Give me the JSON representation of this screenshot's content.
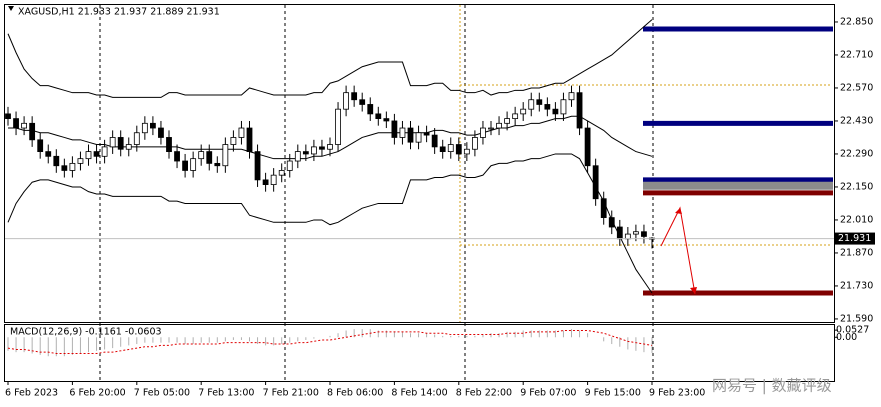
{
  "chart_data": [
    {
      "type": "candlestick",
      "title": "XAGUSD,H1  21.933 21.937 21.889 21.931",
      "categories": [
        "6 Feb 2023",
        null,
        null,
        null,
        null,
        null,
        null,
        null,
        "6 Feb 20:00",
        null,
        null,
        null,
        null,
        null,
        null,
        null,
        "7 Feb 05:00",
        null,
        null,
        null,
        null,
        null,
        null,
        null,
        "7 Feb 13:00",
        null,
        null,
        null,
        null,
        null,
        null,
        null,
        "7 Feb 21:00",
        null,
        null,
        null,
        null,
        null,
        null,
        null,
        "8 Feb 06:00",
        null,
        null,
        null,
        null,
        null,
        null,
        null,
        "8 Feb 14:00",
        null,
        null,
        null,
        null,
        null,
        null,
        null,
        "8 Feb 22:00",
        null,
        null,
        null,
        null,
        null,
        null,
        null,
        "9 Feb 07:00",
        null,
        null,
        null,
        null,
        null,
        null,
        null,
        "9 Feb 15:00",
        null,
        null,
        null,
        null,
        null,
        null,
        null,
        "9 Feb 23:00"
      ],
      "open": [
        22.46,
        22.44,
        22.4,
        22.42,
        22.35,
        22.3,
        22.28,
        22.24,
        22.22,
        22.25,
        22.27,
        22.3,
        22.28,
        22.32,
        22.36,
        22.31,
        22.33,
        22.38,
        22.42,
        22.4,
        22.36,
        22.3,
        22.26,
        22.22,
        22.27,
        22.3,
        22.25,
        22.24,
        22.33,
        22.36,
        22.4,
        22.3,
        22.18,
        22.16,
        22.2,
        22.22,
        22.26,
        22.3,
        22.29,
        22.32,
        22.31,
        22.33,
        22.48,
        22.55,
        22.52,
        22.5,
        22.46,
        22.44,
        22.43,
        22.36,
        22.4,
        22.34,
        22.38,
        22.37,
        22.32,
        22.3,
        22.33,
        22.29,
        22.31,
        22.36,
        22.4,
        22.4,
        22.42,
        22.44,
        22.46,
        22.48,
        22.52,
        22.5,
        22.48,
        22.46,
        22.52,
        22.55,
        22.4,
        22.24,
        22.1,
        22.02,
        21.98,
        21.93,
        21.95,
        21.96,
        21.933
      ],
      "high": [
        22.49,
        22.47,
        22.45,
        22.45,
        22.38,
        22.33,
        22.31,
        22.27,
        22.28,
        22.3,
        22.33,
        22.33,
        22.35,
        22.39,
        22.39,
        22.36,
        22.41,
        22.45,
        22.45,
        22.43,
        22.39,
        22.33,
        22.29,
        22.3,
        22.33,
        22.33,
        22.28,
        22.36,
        22.39,
        22.43,
        22.43,
        22.33,
        22.21,
        22.23,
        22.25,
        22.29,
        22.33,
        22.33,
        22.35,
        22.35,
        22.36,
        22.51,
        22.58,
        22.58,
        22.55,
        22.53,
        22.49,
        22.47,
        22.46,
        22.43,
        22.43,
        22.41,
        22.41,
        22.4,
        22.35,
        22.36,
        22.36,
        22.34,
        22.39,
        22.43,
        22.43,
        22.45,
        22.47,
        22.49,
        22.51,
        22.55,
        22.55,
        22.53,
        22.51,
        22.55,
        22.58,
        22.58,
        22.43,
        22.27,
        22.13,
        22.05,
        22.01,
        21.98,
        21.99,
        21.99,
        21.937
      ],
      "low": [
        22.41,
        22.37,
        22.37,
        22.32,
        22.27,
        22.25,
        22.21,
        22.19,
        22.19,
        22.22,
        22.24,
        22.25,
        22.25,
        22.29,
        22.28,
        22.28,
        22.3,
        22.35,
        22.37,
        22.33,
        22.27,
        22.23,
        22.19,
        22.19,
        22.24,
        22.22,
        22.21,
        22.21,
        22.3,
        22.33,
        22.27,
        22.15,
        22.13,
        22.13,
        22.17,
        22.19,
        22.23,
        22.26,
        22.26,
        22.28,
        22.28,
        22.3,
        22.45,
        22.49,
        22.47,
        22.43,
        22.41,
        22.4,
        22.33,
        22.33,
        22.31,
        22.31,
        22.34,
        22.29,
        22.27,
        22.27,
        22.26,
        22.26,
        22.28,
        22.33,
        22.37,
        22.37,
        22.39,
        22.41,
        22.43,
        22.45,
        22.47,
        22.45,
        22.43,
        22.43,
        22.49,
        22.37,
        22.21,
        22.07,
        21.99,
        21.95,
        21.9,
        21.9,
        21.92,
        21.91,
        21.889
      ],
      "close": [
        22.44,
        22.4,
        22.42,
        22.35,
        22.3,
        22.28,
        22.24,
        22.22,
        22.25,
        22.27,
        22.3,
        22.28,
        22.32,
        22.36,
        22.31,
        22.33,
        22.38,
        22.42,
        22.4,
        22.36,
        22.3,
        22.26,
        22.22,
        22.27,
        22.3,
        22.25,
        22.24,
        22.33,
        22.36,
        22.4,
        22.3,
        22.18,
        22.16,
        22.2,
        22.22,
        22.26,
        22.3,
        22.29,
        22.32,
        22.31,
        22.33,
        22.48,
        22.55,
        22.52,
        22.5,
        22.46,
        22.44,
        22.43,
        22.36,
        22.4,
        22.34,
        22.38,
        22.37,
        22.32,
        22.3,
        22.33,
        22.29,
        22.31,
        22.36,
        22.4,
        22.4,
        22.42,
        22.44,
        22.46,
        22.48,
        22.52,
        22.5,
        22.48,
        22.46,
        22.52,
        22.55,
        22.4,
        22.24,
        22.1,
        22.02,
        21.98,
        21.93,
        21.95,
        21.96,
        21.94,
        21.931
      ],
      "bands": {
        "color": "#000000",
        "upper": [
          22.8,
          22.72,
          22.65,
          22.61,
          22.58,
          22.58,
          22.57,
          22.56,
          22.55,
          22.55,
          22.55,
          22.54,
          22.54,
          22.53,
          22.53,
          22.53,
          22.53,
          22.53,
          22.53,
          22.53,
          22.55,
          22.55,
          22.54,
          22.54,
          22.54,
          22.54,
          22.54,
          22.54,
          22.54,
          22.54,
          22.57,
          22.56,
          22.55,
          22.54,
          22.54,
          22.54,
          22.54,
          22.54,
          22.55,
          22.55,
          22.59,
          22.6,
          22.62,
          22.64,
          22.66,
          22.67,
          22.68,
          22.68,
          22.68,
          22.68,
          22.58,
          22.58,
          22.58,
          22.59,
          22.59,
          22.56,
          22.56,
          22.55,
          22.55,
          22.56,
          22.54,
          22.55,
          22.55,
          22.56,
          22.56,
          22.57,
          22.57,
          22.58,
          22.59,
          22.59,
          22.61,
          22.63,
          22.65,
          22.67,
          22.69,
          22.71,
          22.74,
          22.77,
          22.8,
          22.83,
          22.86
        ],
        "middle": [
          22.4,
          22.4,
          22.39,
          22.39,
          22.38,
          22.38,
          22.37,
          22.36,
          22.35,
          22.35,
          22.34,
          22.33,
          22.33,
          22.32,
          22.32,
          22.32,
          22.32,
          22.32,
          22.32,
          22.32,
          22.32,
          22.32,
          22.31,
          22.31,
          22.31,
          22.31,
          22.31,
          22.31,
          22.31,
          22.31,
          22.3,
          22.29,
          22.28,
          22.27,
          22.27,
          22.27,
          22.27,
          22.27,
          22.28,
          22.28,
          22.29,
          22.3,
          22.32,
          22.34,
          22.36,
          22.37,
          22.38,
          22.38,
          22.38,
          22.38,
          22.38,
          22.38,
          22.38,
          22.39,
          22.39,
          22.38,
          22.38,
          22.37,
          22.37,
          22.38,
          22.39,
          22.4,
          22.4,
          22.41,
          22.41,
          22.42,
          22.42,
          22.43,
          22.44,
          22.44,
          22.45,
          22.45,
          22.43,
          22.41,
          22.39,
          22.36,
          22.34,
          22.32,
          22.3,
          22.29,
          22.28
        ],
        "lower": [
          22.0,
          22.08,
          22.13,
          22.17,
          22.18,
          22.18,
          22.17,
          22.16,
          22.15,
          22.15,
          22.13,
          22.12,
          22.12,
          22.11,
          22.11,
          22.11,
          22.11,
          22.11,
          22.11,
          22.11,
          22.09,
          22.09,
          22.08,
          22.08,
          22.08,
          22.08,
          22.08,
          22.08,
          22.08,
          22.08,
          22.03,
          22.02,
          22.01,
          22.0,
          22.0,
          22.0,
          22.0,
          22.0,
          22.01,
          22.01,
          21.99,
          22.0,
          22.02,
          22.04,
          22.06,
          22.07,
          22.08,
          22.08,
          22.08,
          22.08,
          22.18,
          22.18,
          22.18,
          22.19,
          22.19,
          22.2,
          22.2,
          22.19,
          22.19,
          22.2,
          22.24,
          22.25,
          22.25,
          22.26,
          22.26,
          22.27,
          22.27,
          22.28,
          22.29,
          22.29,
          22.29,
          22.27,
          22.21,
          22.15,
          22.09,
          22.01,
          21.94,
          21.87,
          21.8,
          21.75,
          21.7
        ]
      },
      "hlines": [
        {
          "value": 22.82,
          "color": "#00007f"
        },
        {
          "value": 22.42,
          "color": "#00007f"
        },
        {
          "value": 22.18,
          "color": "#00007f"
        },
        {
          "value": 22.155,
          "color": "#8c8c8c"
        },
        {
          "value": 22.125,
          "color": "#7f0000"
        },
        {
          "value": 21.7,
          "color": "#7f0000"
        }
      ],
      "ylim": [
        21.577,
        22.922
      ],
      "yticks": [
        {
          "value": 22.85,
          "label": "22.850"
        },
        {
          "value": 22.71,
          "label": "22.710"
        },
        {
          "value": 22.57,
          "label": "22.570"
        },
        {
          "value": 22.43,
          "label": "22.430"
        },
        {
          "value": 22.29,
          "label": "22.290"
        },
        {
          "value": 22.15,
          "label": "22.150"
        },
        {
          "value": 22.01,
          "label": "22.010"
        },
        {
          "value": 21.87,
          "label": "21.870"
        },
        {
          "value": 21.73,
          "label": "21.730"
        },
        {
          "value": 21.59,
          "label": "21.590"
        }
      ]
    },
    {
      "type": "macd",
      "title": "MACD(12,26,9) -0.1161 -0.0603",
      "main": {
        "color": "#b0b0b0",
        "values": [
          -0.1,
          -0.11,
          -0.11,
          -0.12,
          -0.13,
          -0.14,
          -0.14,
          -0.14,
          -0.13,
          -0.12,
          -0.11,
          -0.1,
          -0.09,
          -0.08,
          -0.07,
          -0.06,
          -0.05,
          -0.04,
          -0.04,
          -0.04,
          -0.04,
          -0.04,
          -0.05,
          -0.05,
          -0.04,
          -0.04,
          -0.04,
          -0.03,
          -0.02,
          -0.02,
          -0.03,
          -0.05,
          -0.06,
          -0.06,
          -0.05,
          -0.04,
          -0.03,
          -0.02,
          -0.01,
          0.0,
          0.01,
          0.03,
          0.05,
          0.06,
          0.06,
          0.06,
          0.05,
          0.05,
          0.04,
          0.04,
          0.03,
          0.03,
          0.03,
          0.02,
          0.01,
          0.01,
          0.01,
          0.01,
          0.01,
          0.02,
          0.03,
          0.03,
          0.04,
          0.04,
          0.05,
          0.05,
          0.05,
          0.05,
          0.05,
          0.05,
          0.06,
          0.05,
          0.03,
          0.0,
          -0.03,
          -0.05,
          -0.07,
          -0.09,
          -0.1,
          -0.11,
          -0.1161
        ]
      },
      "signal": {
        "color": "#e00000",
        "values": [
          -0.08,
          -0.09,
          -0.09,
          -0.1,
          -0.11,
          -0.11,
          -0.12,
          -0.12,
          -0.12,
          -0.12,
          -0.12,
          -0.12,
          -0.11,
          -0.11,
          -0.1,
          -0.09,
          -0.08,
          -0.07,
          -0.07,
          -0.06,
          -0.06,
          -0.05,
          -0.05,
          -0.05,
          -0.05,
          -0.05,
          -0.05,
          -0.04,
          -0.04,
          -0.04,
          -0.04,
          -0.04,
          -0.04,
          -0.05,
          -0.05,
          -0.05,
          -0.04,
          -0.04,
          -0.03,
          -0.02,
          -0.02,
          -0.01,
          0.0,
          0.01,
          0.02,
          0.03,
          0.04,
          0.04,
          0.04,
          0.04,
          0.04,
          0.04,
          0.03,
          0.03,
          0.03,
          0.02,
          0.02,
          0.02,
          0.02,
          0.02,
          0.02,
          0.02,
          0.03,
          0.03,
          0.03,
          0.04,
          0.04,
          0.04,
          0.04,
          0.05,
          0.05,
          0.05,
          0.05,
          0.04,
          0.03,
          0.01,
          -0.01,
          -0.03,
          -0.04,
          -0.05,
          -0.0603
        ]
      },
      "ylim": [
        -0.323,
        0.098
      ],
      "yticks": [
        {
          "value": 0.0527,
          "label": "0.0527"
        },
        {
          "value": 0,
          "label": "0.00"
        }
      ]
    }
  ],
  "watermark": "网易号 | 数藏评级"
}
